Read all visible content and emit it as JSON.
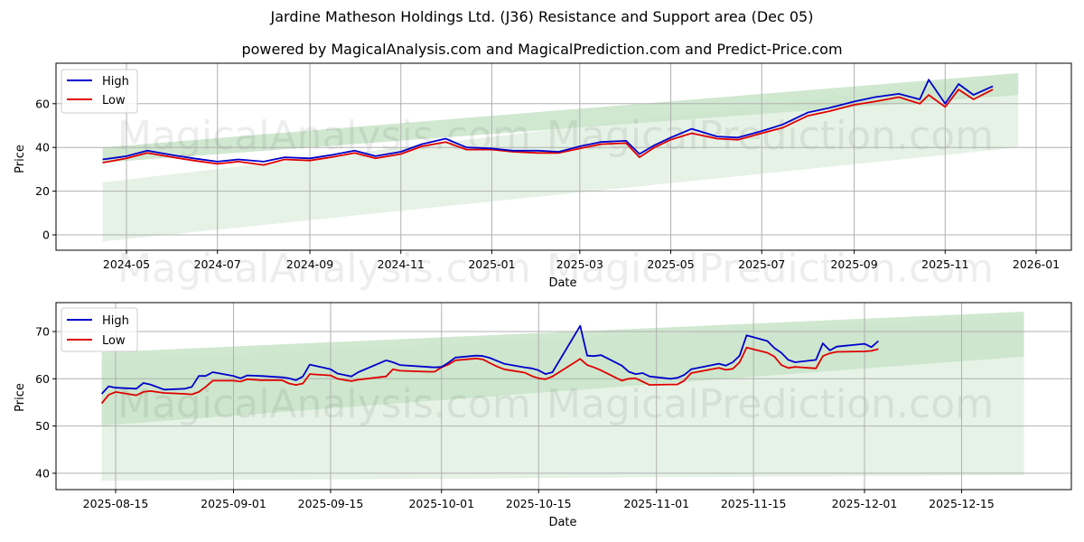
{
  "header": {
    "title": "Jardine Matheson Holdings Ltd. (J36) Resistance and Support area (Dec 05)",
    "subtitle": "powered by MagicalAnalysis.com and MagicalPrediction.com and Predict-Price.com"
  },
  "watermarks": [
    "MagicalAnalysis.com",
    "MagicalPrediction.com"
  ],
  "colors": {
    "high": "#0000cc",
    "low": "#e00000",
    "band_dark": "#c8e4c8",
    "band_light": "#e3f1e3",
    "grid": "#b0b0b0"
  },
  "chart_data": [
    {
      "type": "line",
      "title": "Jardine Matheson Holdings Ltd. (J36) Resistance and Support area (Dec 05)",
      "xlabel": "Date",
      "ylabel": "Price",
      "ylim": [
        -7,
        78
      ],
      "yticks": [
        0,
        20,
        40,
        60
      ],
      "xticks": [
        "2024-05",
        "2024-07",
        "2024-09",
        "2024-11",
        "2025-01",
        "2025-03",
        "2025-05",
        "2025-07",
        "2025-09",
        "2025-11",
        "2026-01"
      ],
      "grid": true,
      "legend": {
        "position": "upper left",
        "entries": [
          "High",
          "Low"
        ]
      },
      "x": [
        "2024-04-15",
        "2024-05-01",
        "2024-05-15",
        "2024-06-01",
        "2024-06-15",
        "2024-07-01",
        "2024-07-15",
        "2024-08-01",
        "2024-08-15",
        "2024-09-01",
        "2024-09-15",
        "2024-10-01",
        "2024-10-15",
        "2024-11-01",
        "2024-11-15",
        "2024-12-01",
        "2024-12-15",
        "2025-01-01",
        "2025-01-15",
        "2025-02-01",
        "2025-02-15",
        "2025-03-01",
        "2025-03-15",
        "2025-04-01",
        "2025-04-10",
        "2025-04-20",
        "2025-05-01",
        "2025-05-15",
        "2025-06-01",
        "2025-06-15",
        "2025-07-01",
        "2025-07-15",
        "2025-08-01",
        "2025-08-15",
        "2025-09-01",
        "2025-09-15",
        "2025-10-01",
        "2025-10-15",
        "2025-10-21",
        "2025-11-01",
        "2025-11-10",
        "2025-11-20",
        "2025-12-03"
      ],
      "series": [
        {
          "name": "High",
          "values": [
            34.5,
            36,
            38.5,
            36.5,
            35,
            33.5,
            34.5,
            33.5,
            35.5,
            35,
            36.5,
            38.5,
            36,
            38,
            41.5,
            44,
            40,
            39.5,
            38.5,
            38.5,
            38,
            40.5,
            42.5,
            43,
            37,
            41,
            44.5,
            48.5,
            45,
            44.5,
            47.5,
            50.5,
            56,
            58,
            61,
            63,
            64.5,
            62,
            71,
            60,
            69,
            64,
            68
          ]
        },
        {
          "name": "Low",
          "values": [
            33,
            35,
            37.5,
            35.5,
            34,
            32.5,
            33.5,
            32,
            34.5,
            34,
            35.5,
            37.5,
            35,
            37,
            40.5,
            42.5,
            39,
            39,
            38,
            37.5,
            37.5,
            39.5,
            41.5,
            42,
            35.5,
            40,
            43.5,
            46.5,
            44,
            43.5,
            46.5,
            49,
            54.5,
            56.5,
            59.5,
            61,
            63,
            60,
            64,
            58.5,
            66.5,
            62,
            66.5
          ]
        },
        {
          "name": "Resistance band",
          "type": "area",
          "x": [
            "2024-04-15",
            "2025-12-20"
          ],
          "upper": [
            40,
            74
          ],
          "lower": [
            33,
            64
          ],
          "color": "#c8e4c8"
        },
        {
          "name": "Support band",
          "type": "area",
          "x": [
            "2024-04-15",
            "2025-12-20"
          ],
          "upper": [
            24,
            73
          ],
          "lower": [
            -3,
            40
          ],
          "color": "#e3f1e3"
        }
      ]
    },
    {
      "type": "line",
      "title": "",
      "xlabel": "Date",
      "ylabel": "Price",
      "ylim": [
        36.5,
        76
      ],
      "yticks": [
        40,
        50,
        60,
        70
      ],
      "xticks": [
        "2025-08-15",
        "2025-09-01",
        "2025-09-15",
        "2025-10-01",
        "2025-10-15",
        "2025-11-01",
        "2025-11-15",
        "2025-12-01",
        "2025-12-15"
      ],
      "grid": true,
      "legend": {
        "position": "upper left",
        "entries": [
          "High",
          "Low"
        ]
      },
      "x": [
        "2025-08-13",
        "2025-08-14",
        "2025-08-15",
        "2025-08-18",
        "2025-08-19",
        "2025-08-20",
        "2025-08-22",
        "2025-08-25",
        "2025-08-26",
        "2025-08-27",
        "2025-08-28",
        "2025-08-29",
        "2025-09-01",
        "2025-09-02",
        "2025-09-03",
        "2025-09-05",
        "2025-09-08",
        "2025-09-09",
        "2025-09-10",
        "2025-09-11",
        "2025-09-12",
        "2025-09-15",
        "2025-09-16",
        "2025-09-18",
        "2025-09-19",
        "2025-09-23",
        "2025-09-24",
        "2025-09-25",
        "2025-09-29",
        "2025-09-30",
        "2025-10-01",
        "2025-10-02",
        "2025-10-03",
        "2025-10-06",
        "2025-10-07",
        "2025-10-08",
        "2025-10-09",
        "2025-10-10",
        "2025-10-13",
        "2025-10-14",
        "2025-10-15",
        "2025-10-16",
        "2025-10-17",
        "2025-10-21",
        "2025-10-22",
        "2025-10-23",
        "2025-10-24",
        "2025-10-27",
        "2025-10-28",
        "2025-10-29",
        "2025-10-30",
        "2025-10-31",
        "2025-11-03",
        "2025-11-04",
        "2025-11-05",
        "2025-11-06",
        "2025-11-10",
        "2025-11-11",
        "2025-11-12",
        "2025-11-13",
        "2025-11-14",
        "2025-11-17",
        "2025-11-18",
        "2025-11-19",
        "2025-11-20",
        "2025-11-21",
        "2025-11-24",
        "2025-11-25",
        "2025-11-26",
        "2025-11-27",
        "2025-12-01",
        "2025-12-02",
        "2025-12-03"
      ],
      "series": [
        {
          "name": "High",
          "values": [
            56.8,
            58.4,
            58.1,
            57.9,
            59.1,
            58.8,
            57.7,
            57.9,
            58.3,
            60.6,
            60.6,
            61.4,
            60.6,
            60.1,
            60.7,
            60.6,
            60.3,
            60.1,
            59.7,
            60.5,
            63.0,
            62.0,
            61.1,
            60.5,
            61.4,
            63.9,
            63.5,
            62.9,
            62.5,
            62.4,
            62.5,
            63.4,
            64.5,
            64.9,
            64.8,
            64.4,
            63.8,
            63.2,
            62.4,
            62.2,
            61.8,
            61.0,
            61.4,
            71.2,
            64.9,
            64.8,
            65.0,
            62.8,
            61.5,
            61.0,
            61.2,
            60.5,
            60.0,
            60.2,
            60.8,
            62.0,
            63.2,
            62.8,
            63.5,
            64.9,
            69.2,
            68.0,
            66.5,
            65.5,
            64.0,
            63.5,
            64.0,
            67.5,
            66.0,
            66.8,
            67.4,
            66.7,
            68.0
          ]
        },
        {
          "name": "Low",
          "values": [
            54.8,
            56.6,
            57.2,
            56.5,
            57.2,
            57.4,
            57.0,
            56.8,
            56.7,
            57.2,
            58.3,
            59.6,
            59.6,
            59.4,
            59.9,
            59.7,
            59.7,
            59.0,
            58.7,
            59.0,
            61.0,
            60.7,
            60.0,
            59.5,
            59.8,
            60.5,
            62.0,
            61.7,
            61.5,
            61.5,
            62.4,
            63.0,
            63.9,
            64.3,
            64.1,
            63.3,
            62.6,
            62.0,
            61.3,
            60.6,
            60.1,
            59.9,
            60.5,
            64.2,
            62.9,
            62.4,
            61.8,
            59.6,
            60.0,
            60.1,
            59.4,
            58.7,
            58.8,
            58.8,
            59.6,
            61.2,
            62.3,
            61.9,
            62.1,
            63.5,
            66.6,
            65.5,
            64.7,
            62.9,
            62.3,
            62.5,
            62.2,
            64.8,
            65.4,
            65.7,
            65.8,
            65.9,
            66.3
          ]
        },
        {
          "name": "Resistance band",
          "type": "area",
          "x": [
            "2025-08-13",
            "2025-12-24"
          ],
          "upper": [
            65.6,
            74.2
          ],
          "lower": [
            50.1,
            64.7
          ],
          "color": "#c8e4c8"
        },
        {
          "name": "Support band",
          "type": "area",
          "x": [
            "2025-08-13",
            "2025-12-24"
          ],
          "upper": [
            63.8,
            73.2
          ],
          "lower": [
            38.4,
            39.6
          ],
          "color": "#e3f1e3"
        }
      ]
    }
  ]
}
